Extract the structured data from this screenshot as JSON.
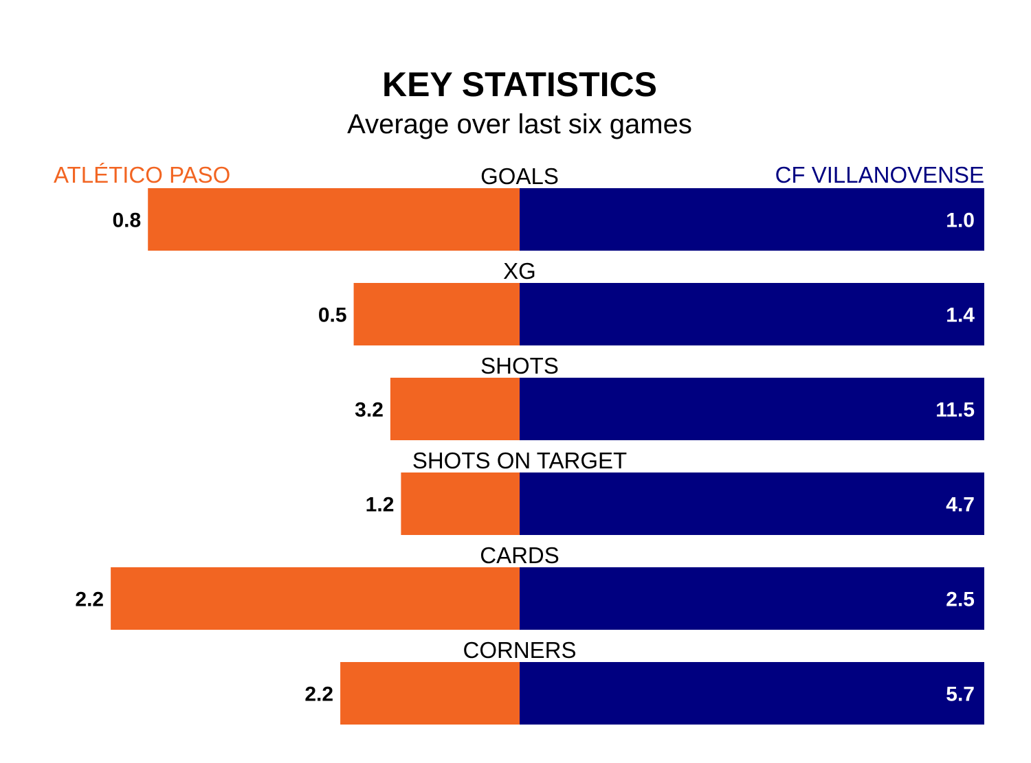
{
  "chart_data": {
    "type": "bar",
    "title": "KEY STATISTICS",
    "subtitle": "Average over last six games",
    "categories": [
      "GOALS",
      "XG",
      "SHOTS",
      "SHOTS ON TARGET",
      "CARDS",
      "CORNERS"
    ],
    "series": [
      {
        "name": "ATLÉTICO PASO",
        "color": "#f26522",
        "values": [
          0.8,
          0.5,
          3.2,
          1.2,
          2.2,
          2.2
        ],
        "labels": [
          "0.8",
          "0.5",
          "3.2",
          "1.2",
          "2.2",
          "2.2"
        ]
      },
      {
        "name": "CF VILLANOVENSE",
        "color": "#000080",
        "values": [
          1.0,
          1.4,
          11.5,
          4.7,
          2.5,
          5.7
        ],
        "labels": [
          "1.0",
          "1.4",
          "11.5",
          "4.7",
          "2.5",
          "5.7"
        ]
      }
    ],
    "normalization": "each row scaled to its larger value",
    "legend": "team names above the first row, left and right"
  }
}
